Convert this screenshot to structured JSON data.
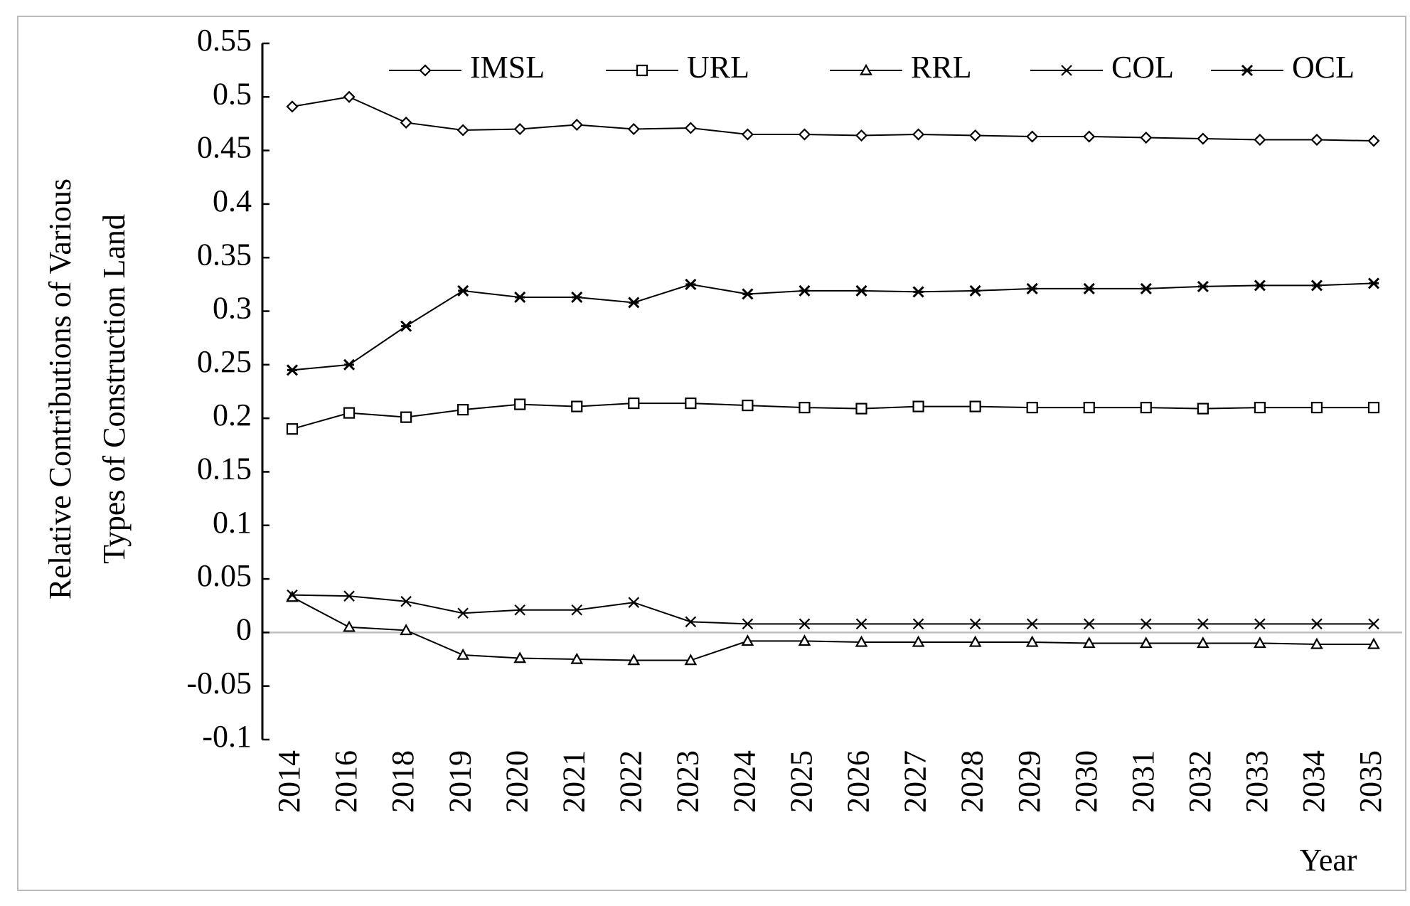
{
  "chart_data": {
    "type": "line",
    "ylabel": [
      "Relative Contributions of Various",
      "Types of Construction Land"
    ],
    "xlabel": "Year",
    "categories": [
      "2014",
      "2016",
      "2018",
      "2019",
      "2020",
      "2021",
      "2022",
      "2023",
      "2024",
      "2025",
      "2026",
      "2027",
      "2028",
      "2029",
      "2030",
      "2031",
      "2032",
      "2033",
      "2034",
      "2035"
    ],
    "series": [
      {
        "name": "IMSL",
        "color": "#000000",
        "marker": "diamond",
        "values": [
          0.491,
          0.5,
          0.476,
          0.469,
          0.47,
          0.474,
          0.47,
          0.471,
          0.465,
          0.465,
          0.464,
          0.465,
          0.464,
          0.463,
          0.463,
          0.462,
          0.461,
          0.46,
          0.46,
          0.459
        ]
      },
      {
        "name": "URL",
        "color": "#000000",
        "marker": "square",
        "values": [
          0.19,
          0.205,
          0.201,
          0.208,
          0.213,
          0.211,
          0.214,
          0.214,
          0.212,
          0.21,
          0.209,
          0.211,
          0.211,
          0.21,
          0.21,
          0.21,
          0.209,
          0.21,
          0.21,
          0.21
        ]
      },
      {
        "name": "RRL",
        "color": "#000000",
        "marker": "triangle",
        "values": [
          0.033,
          0.005,
          0.002,
          -0.021,
          -0.024,
          -0.025,
          -0.026,
          -0.026,
          -0.008,
          -0.008,
          -0.009,
          -0.009,
          -0.009,
          -0.009,
          -0.01,
          -0.01,
          -0.01,
          -0.01,
          -0.011,
          -0.011
        ]
      },
      {
        "name": "COL",
        "color": "#000000",
        "marker": "x",
        "values": [
          0.035,
          0.034,
          0.029,
          0.018,
          0.021,
          0.021,
          0.028,
          0.01,
          0.008,
          0.008,
          0.008,
          0.008,
          0.008,
          0.008,
          0.008,
          0.008,
          0.008,
          0.008,
          0.008,
          0.008
        ]
      },
      {
        "name": "OCL",
        "color": "#000000",
        "marker": "asterisk",
        "values": [
          0.245,
          0.25,
          0.286,
          0.319,
          0.313,
          0.313,
          0.308,
          0.325,
          0.316,
          0.319,
          0.319,
          0.318,
          0.319,
          0.321,
          0.321,
          0.321,
          0.323,
          0.324,
          0.324,
          0.326
        ]
      }
    ],
    "ylim": [
      -0.1,
      0.55
    ],
    "yticks": [
      0.55,
      0.5,
      0.45,
      0.4,
      0.35,
      0.3,
      0.25,
      0.2,
      0.15,
      0.1,
      0.05,
      0,
      -0.05,
      -0.1
    ],
    "legend": "top"
  }
}
